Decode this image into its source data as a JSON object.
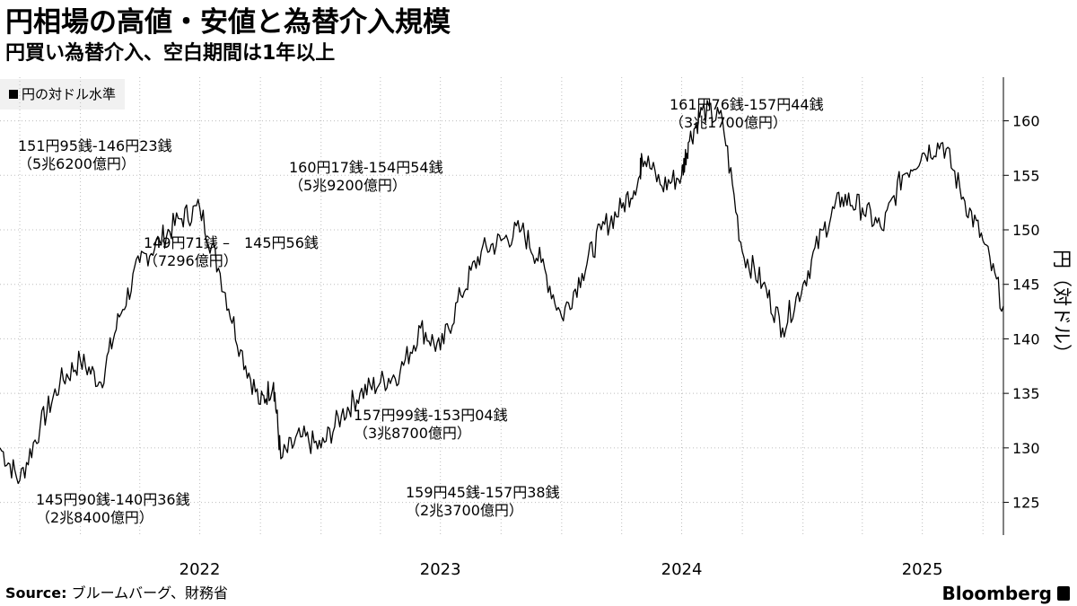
{
  "header": {
    "title": "円相場の高値・安値と為替介入規模",
    "subtitle": "円買い為替介入、空白期間は1年以上"
  },
  "legend": {
    "label": "円の対ドル水準"
  },
  "footer": {
    "source_label": "Source:",
    "source_text": "ブルームバーグ、財務省",
    "brand": "Bloomberg"
  },
  "chart_data": {
    "type": "line",
    "series": [
      {
        "name": "円の対ドル水準",
        "x": [
          "2021-09-01",
          "2021-10-01",
          "2021-11-01",
          "2021-12-01",
          "2022-01-01",
          "2022-02-01",
          "2022-03-01",
          "2022-04-01",
          "2022-05-01",
          "2022-06-01",
          "2022-07-01",
          "2022-08-01",
          "2022-09-01",
          "2022-10-01",
          "2022-10-21",
          "2022-11-01",
          "2022-12-01",
          "2023-01-01",
          "2023-02-01",
          "2023-03-01",
          "2023-04-01",
          "2023-05-01",
          "2023-06-01",
          "2023-07-01",
          "2023-08-01",
          "2023-09-01",
          "2023-10-01",
          "2023-11-01",
          "2023-12-01",
          "2024-01-01",
          "2024-02-01",
          "2024-03-01",
          "2024-04-01",
          "2024-04-29",
          "2024-05-01",
          "2024-06-01",
          "2024-07-01",
          "2024-07-11",
          "2024-08-01",
          "2024-09-01",
          "2024-10-01",
          "2024-11-01",
          "2024-12-01",
          "2025-01-01",
          "2025-02-01",
          "2025-03-01",
          "2025-04-01",
          "2025-05-01",
          "2025-06-01",
          "2025-07-01",
          "2025-08-01",
          "2025-09-01",
          "2025-10-01",
          "2025-11-01"
        ],
        "y": [
          130,
          127,
          132,
          136,
          138,
          136,
          142,
          147,
          149,
          151,
          152,
          146,
          139,
          134,
          136,
          129,
          131,
          130,
          133,
          135,
          136,
          137,
          141,
          139,
          144,
          148,
          149,
          150,
          147,
          142,
          146,
          150,
          152,
          155,
          157,
          154,
          155,
          158,
          161,
          160,
          148,
          145,
          141,
          145,
          150,
          153,
          152,
          150,
          155,
          157,
          158,
          153,
          149,
          143
        ]
      }
    ],
    "ylabel": "円（対ドル）",
    "ylim": [
      122,
      164
    ],
    "yticks": [
      125,
      130,
      135,
      140,
      145,
      150,
      155,
      160
    ],
    "xticks": [
      "2022",
      "2023",
      "2024",
      "2025"
    ],
    "annotations": [
      {
        "line1": "151円95銭-146円23銭",
        "line2": "（5兆6200億円）"
      },
      {
        "line1": "149円71銭 –　145円56銭",
        "line2": "（7296億円）"
      },
      {
        "line1": "145円90銭-140円36銭",
        "line2": "（2兆8400億円）"
      },
      {
        "line1": "160円17銭-154円54銭",
        "line2": "（5兆9200億円）"
      },
      {
        "line1": "157円99銭-153円04銭",
        "line2": "（3兆8700億円）"
      },
      {
        "line1": "159円45銭-157円38銭",
        "line2": "（2兆3700億円）"
      },
      {
        "line1": "161円76銭-157円44銭",
        "line2": "（3兆1700億円）"
      }
    ],
    "grid": true
  }
}
